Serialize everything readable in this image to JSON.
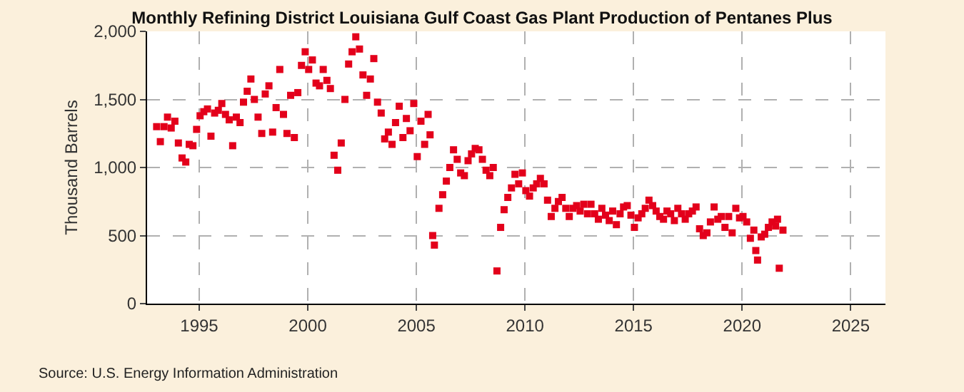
{
  "chart_data": {
    "type": "scatter",
    "title": "Monthly Refining District Louisiana Gulf Coast Gas Plant Production of Pentanes Plus",
    "ylabel": "Thousand Barrels",
    "annotations": [
      "Source: U.S. Energy Information Administration"
    ],
    "x": [
      1993.04,
      1993.21,
      1993.38,
      1993.54,
      1993.71,
      1993.88,
      1994.04,
      1994.21,
      1994.38,
      1994.54,
      1994.71,
      1994.88,
      1995.04,
      1995.21,
      1995.38,
      1995.54,
      1995.71,
      1995.88,
      1996.04,
      1996.21,
      1996.38,
      1996.54,
      1996.71,
      1996.88,
      1997.04,
      1997.21,
      1997.38,
      1997.54,
      1997.71,
      1997.88,
      1998.04,
      1998.21,
      1998.38,
      1998.54,
      1998.71,
      1998.88,
      1999.04,
      1999.21,
      1999.38,
      1999.54,
      1999.71,
      1999.88,
      2000.04,
      2000.21,
      2000.38,
      2000.54,
      2000.71,
      2000.88,
      2001.04,
      2001.21,
      2001.38,
      2001.54,
      2001.71,
      2001.88,
      2002.04,
      2002.21,
      2002.38,
      2002.54,
      2002.71,
      2002.88,
      2003.04,
      2003.21,
      2003.38,
      2003.54,
      2003.71,
      2003.88,
      2004.04,
      2004.21,
      2004.38,
      2004.54,
      2004.71,
      2004.88,
      2005.04,
      2005.21,
      2005.38,
      2005.54,
      2005.63,
      2005.75,
      2005.83,
      2006.04,
      2006.21,
      2006.38,
      2006.54,
      2006.71,
      2006.88,
      2007.04,
      2007.21,
      2007.38,
      2007.54,
      2007.71,
      2007.88,
      2008.04,
      2008.21,
      2008.38,
      2008.54,
      2008.71,
      2008.88,
      2009.04,
      2009.21,
      2009.38,
      2009.54,
      2009.71,
      2009.88,
      2010.04,
      2010.21,
      2010.38,
      2010.54,
      2010.71,
      2010.88,
      2011.04,
      2011.21,
      2011.38,
      2011.54,
      2011.71,
      2011.88,
      2012.04,
      2012.21,
      2012.38,
      2012.54,
      2012.71,
      2012.88,
      2013.04,
      2013.21,
      2013.38,
      2013.54,
      2013.71,
      2013.88,
      2014.04,
      2014.21,
      2014.38,
      2014.54,
      2014.71,
      2014.88,
      2015.04,
      2015.21,
      2015.38,
      2015.54,
      2015.71,
      2015.88,
      2016.04,
      2016.21,
      2016.38,
      2016.54,
      2016.71,
      2016.88,
      2017.04,
      2017.21,
      2017.38,
      2017.54,
      2017.71,
      2017.88,
      2018.04,
      2018.21,
      2018.38,
      2018.54,
      2018.71,
      2018.88,
      2019.04,
      2019.21,
      2019.38,
      2019.54,
      2019.71,
      2019.88,
      2020.04,
      2020.21,
      2020.38,
      2020.54,
      2020.63,
      2020.71,
      2020.88,
      2021.04,
      2021.21,
      2021.38,
      2021.54,
      2021.63,
      2021.71,
      2021.88
    ],
    "series": [
      {
        "color": "#e3001b",
        "values": [
          1300,
          1190,
          1300,
          1370,
          1290,
          1340,
          1180,
          1070,
          1040,
          1170,
          1160,
          1280,
          1380,
          1410,
          1430,
          1230,
          1400,
          1420,
          1470,
          1390,
          1350,
          1160,
          1370,
          1330,
          1480,
          1560,
          1650,
          1500,
          1370,
          1250,
          1540,
          1600,
          1260,
          1440,
          1720,
          1390,
          1250,
          1530,
          1220,
          1550,
          1750,
          1850,
          1720,
          1790,
          1620,
          1600,
          1720,
          1640,
          1580,
          1090,
          980,
          1180,
          1500,
          1760,
          1850,
          1960,
          1870,
          1680,
          1530,
          1650,
          1800,
          1480,
          1400,
          1210,
          1260,
          1170,
          1330,
          1450,
          1220,
          1360,
          1270,
          1470,
          1080,
          1340,
          1170,
          1390,
          1240,
          500,
          430,
          700,
          800,
          900,
          1000,
          1130,
          1060,
          960,
          940,
          1050,
          1100,
          1140,
          1130,
          1060,
          980,
          940,
          1000,
          240,
          560,
          690,
          780,
          850,
          950,
          880,
          960,
          830,
          790,
          850,
          880,
          920,
          880,
          760,
          640,
          700,
          750,
          780,
          700,
          640,
          700,
          720,
          680,
          730,
          660,
          730,
          660,
          620,
          700,
          650,
          610,
          680,
          580,
          660,
          710,
          720,
          650,
          560,
          630,
          660,
          700,
          760,
          720,
          680,
          640,
          620,
          680,
          660,
          610,
          700,
          660,
          620,
          660,
          680,
          710,
          550,
          500,
          520,
          600,
          710,
          620,
          640,
          560,
          640,
          520,
          700,
          630,
          640,
          600,
          480,
          540,
          390,
          320,
          490,
          510,
          560,
          600,
          570,
          620,
          260,
          540
        ]
      }
    ],
    "xlim": [
      1992.6,
      2026.6
    ],
    "xticks": [
      1995,
      2000,
      2005,
      2010,
      2015,
      2020,
      2025
    ],
    "ylim": [
      0,
      2000
    ],
    "yticks": [
      {
        "value": 0,
        "label": "0"
      },
      {
        "value": 500,
        "label": "500"
      },
      {
        "value": 1000,
        "label": "1,000"
      },
      {
        "value": 1500,
        "label": "1,500"
      },
      {
        "value": 2000,
        "label": "2,000"
      }
    ],
    "grid": true,
    "marker": "square"
  }
}
